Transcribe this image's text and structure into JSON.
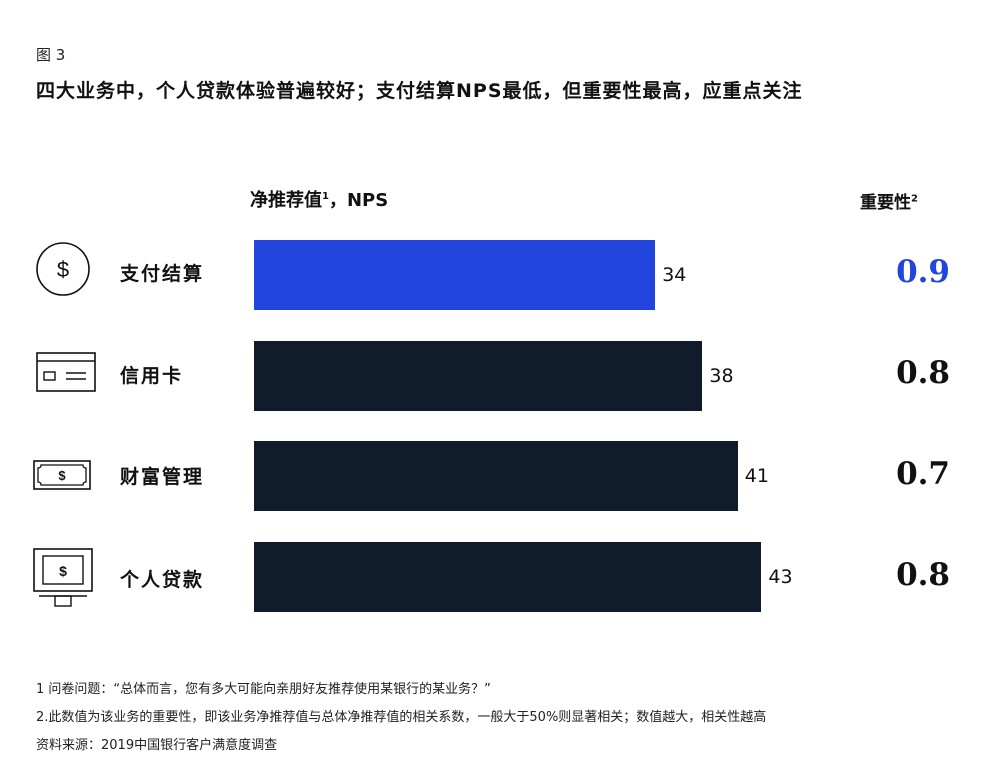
{
  "figure_label": "图 3",
  "title": "四大业务中，个人贷款体验普遍较好；支付结算NPS最低，但重要性最高，应重点关注",
  "nps_header": "净推荐值",
  "nps_header_sup": "1",
  "nps_header_suffix": "，NPS",
  "importance_header": "重要性",
  "importance_header_sup": "2",
  "chart_data": {
    "type": "bar",
    "orientation": "horizontal",
    "categories": [
      "支付结算",
      "信用卡",
      "财富管理",
      "个人贷款"
    ],
    "series": [
      {
        "values": [
          34,
          38,
          41,
          43
        ]
      }
    ],
    "importance": [
      "0.9",
      "0.8",
      "0.7",
      "0.8"
    ],
    "bar_colors": [
      "#2246dd",
      "#101c2c",
      "#101c2c",
      "#101c2c"
    ],
    "highlight_color": "#2246dd",
    "icons": [
      "dollar-coin-icon",
      "credit-card-icon",
      "banknote-icon",
      "atm-icon"
    ]
  },
  "footnotes": [
    "1 问卷问题：“总体而言，您有多大可能向亲朋好友推荐使用某银行的某业务？”",
    "2.此数值为该业务的重要性，即该业务净推荐值与总体净推荐值的相关系数，一般大于50%则显著相关；数值越大，相关性越高",
    "资料来源：2019中国银行客户满意度调查"
  ]
}
